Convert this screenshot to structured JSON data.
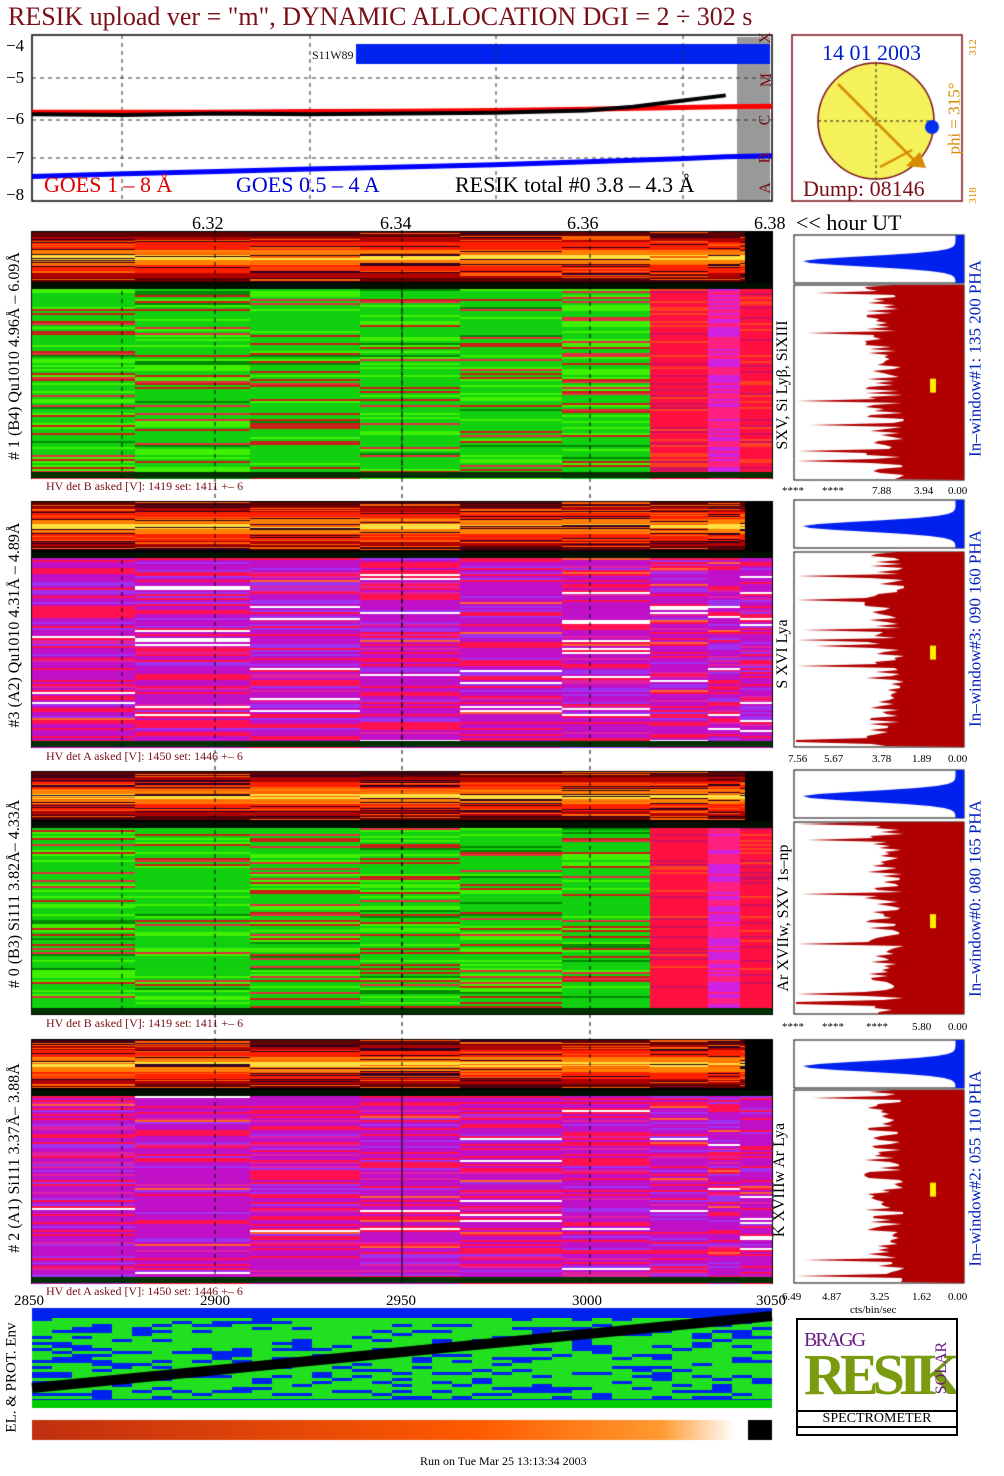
{
  "header": {
    "title": "RESIK upload ver = \"m\", DYNAMIC ALLOCATION  DGI =   2 ÷ 302 s",
    "date": "14 01 2003",
    "phi_label": "phi = 315°",
    "phi_sub_top": "312",
    "phi_sub_bottom": "318",
    "dump": "Dump: 08146",
    "flare_label": "S11W89"
  },
  "goes": {
    "legend_red": "GOES 1 – 8 Å",
    "legend_blue": "GOES 0.5 – 4 A",
    "legend_black": "RESIK total #0  3.8 – 4.3 Å",
    "y_ticks": [
      "−4",
      "−5",
      "−6",
      "−7",
      "−8"
    ],
    "flare_classes": [
      "X",
      "M",
      "C",
      "B",
      "A"
    ],
    "time_ticks": [
      "6.32",
      "6.34",
      "6.36",
      "6.38"
    ],
    "time_axis_label": "<< hour UT"
  },
  "panels": [
    {
      "id": 1,
      "left_label": "# 1 (B4) Qu1010 4.96Å – 6.09Å",
      "line_label": "SXV, Si Lyβ, SiXIII",
      "right_label": "In–window#1:  135 200 PHA",
      "hv": "HV det B asked [V]:  1419 set:  1411  +–    6",
      "profile_ticks": [
        "****",
        "****",
        "7.88",
        "3.94",
        "0.00"
      ]
    },
    {
      "id": 3,
      "left_label": "#3 (A2) Qu1010  4.31Å – 4.89Å",
      "line_label": "S XVI Lya",
      "right_label": "In–window#3:  090 160 PHA",
      "hv": "HV det A asked [V]:  1450 set:  1446  +–    6",
      "profile_ticks": [
        "7.56",
        "5.67",
        "3.78",
        "1.89",
        "0.00"
      ]
    },
    {
      "id": 0,
      "left_label": "# 0 (B3) Si111  3.82Å– 4.33Å",
      "line_label": "Ar XVIIw,  SXV 1s–np",
      "right_label": "In–window#0:  080 165 PHA",
      "hv": "HV det B asked [V]:  1419 set:  1411  +–    6",
      "profile_ticks": [
        "****",
        "****",
        "****",
        "5.80",
        "0.00"
      ]
    },
    {
      "id": 2,
      "left_label": "# 2 (A1) Si111  3.37Å– 3.88Å",
      "line_label": "K XVIIIw  Ar Lya",
      "right_label": "In–window#2:  055 110 PHA",
      "hv": "HV det A asked [V]:  1450 set:  1446  +–    6",
      "profile_ticks": [
        "6.49",
        "4.87",
        "3.25",
        "1.62",
        "0.00"
      ]
    }
  ],
  "bottom": {
    "x_ticks": [
      "2850",
      "2900",
      "2950",
      "3000",
      "3050"
    ],
    "cts_label": "cts/bin/sec",
    "env_label": "EL. & PROT. Env",
    "run_label": "Run on Tue Mar 25 13:13:34 2003"
  },
  "logo": {
    "top_letters": "BRAGG",
    "main_letters": "RESIK",
    "side_letters": "SOLAR",
    "band": "SPECTROMETER"
  },
  "chart_data": {
    "type": "line",
    "title": "RESIK upload ver = \"m\", DYNAMIC ALLOCATION  DGI =   2 ÷ 302 s",
    "xlabel": "<< hour UT",
    "x_ticks": [
      6.32,
      6.34,
      6.36,
      6.38
    ],
    "ylim": [
      -8.2,
      -3.8
    ],
    "log_y": true,
    "grid": true,
    "series": [
      {
        "name": "GOES 1 – 8 Å",
        "color": "#ff0000",
        "x": [
          6.3,
          6.31,
          6.32,
          6.33,
          6.34,
          6.35,
          6.36,
          6.37,
          6.375,
          6.38
        ],
        "y": [
          -5.85,
          -5.85,
          -5.85,
          -5.83,
          -5.82,
          -5.8,
          -5.77,
          -5.72,
          -5.7,
          -5.69
        ]
      },
      {
        "name": "GOES 0.5 – 4 A",
        "color": "#0000ff",
        "x": [
          6.3,
          6.31,
          6.32,
          6.33,
          6.34,
          6.35,
          6.36,
          6.37,
          6.375,
          6.38
        ],
        "y": [
          -7.55,
          -7.48,
          -7.42,
          -7.35,
          -7.3,
          -7.24,
          -7.16,
          -7.08,
          -7.03,
          -7.0
        ]
      },
      {
        "name": "RESIK total #0  3.8 – 4.3 Å",
        "color": "#000000",
        "x": [
          6.3,
          6.31,
          6.32,
          6.33,
          6.34,
          6.35,
          6.36,
          6.365,
          6.37,
          6.375
        ],
        "y": [
          -5.9,
          -5.92,
          -5.88,
          -5.9,
          -5.88,
          -5.86,
          -5.8,
          -5.7,
          -5.55,
          -5.4
        ]
      }
    ]
  }
}
